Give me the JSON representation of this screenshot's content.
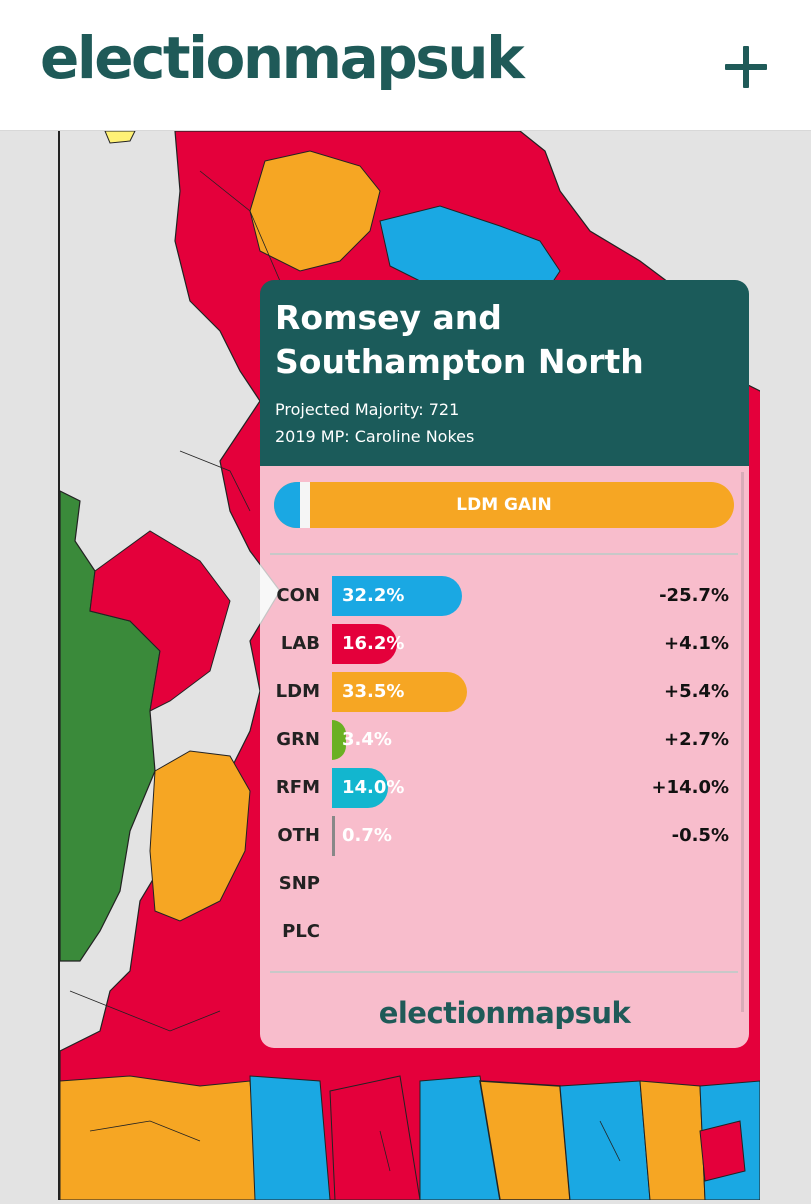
{
  "header": {
    "logo": "electionmapsuk",
    "menu_icon": "plus-icon"
  },
  "map": {
    "party_colors": {
      "CON": "#1aa8e3",
      "LAB": "#e4003b",
      "LDM": "#f6a623",
      "GRN": "#3a8a3a",
      "RFM": "#12b6cf",
      "OTH": "#888888"
    }
  },
  "card": {
    "title": "Romsey and Southampton North",
    "majority": "Projected Majority: 721",
    "mp": "2019 MP: Caroline Nokes",
    "result_label": "LDM GAIN",
    "parties": [
      {
        "name": "CON",
        "pct": "32.2%",
        "value": 32.2,
        "change": "-25.7%",
        "color": "#1aa8e3"
      },
      {
        "name": "LAB",
        "pct": "16.2%",
        "value": 16.2,
        "change": "+4.1%",
        "color": "#e4003b"
      },
      {
        "name": "LDM",
        "pct": "33.5%",
        "value": 33.5,
        "change": "+5.4%",
        "color": "#f6a623"
      },
      {
        "name": "GRN",
        "pct": "3.4%",
        "value": 3.4,
        "change": "+2.7%",
        "color": "#6ab023"
      },
      {
        "name": "RFM",
        "pct": "14.0%",
        "value": 14.0,
        "change": "+14.0%",
        "color": "#12b6cf"
      },
      {
        "name": "OTH",
        "pct": "0.7%",
        "value": 0.7,
        "change": "-0.5%",
        "color": "#888888"
      },
      {
        "name": "SNP",
        "pct": "",
        "value": 0,
        "change": ""
      },
      {
        "name": "PLC",
        "pct": "",
        "value": 0,
        "change": ""
      }
    ],
    "footer_logo": "electionmapsuk"
  }
}
